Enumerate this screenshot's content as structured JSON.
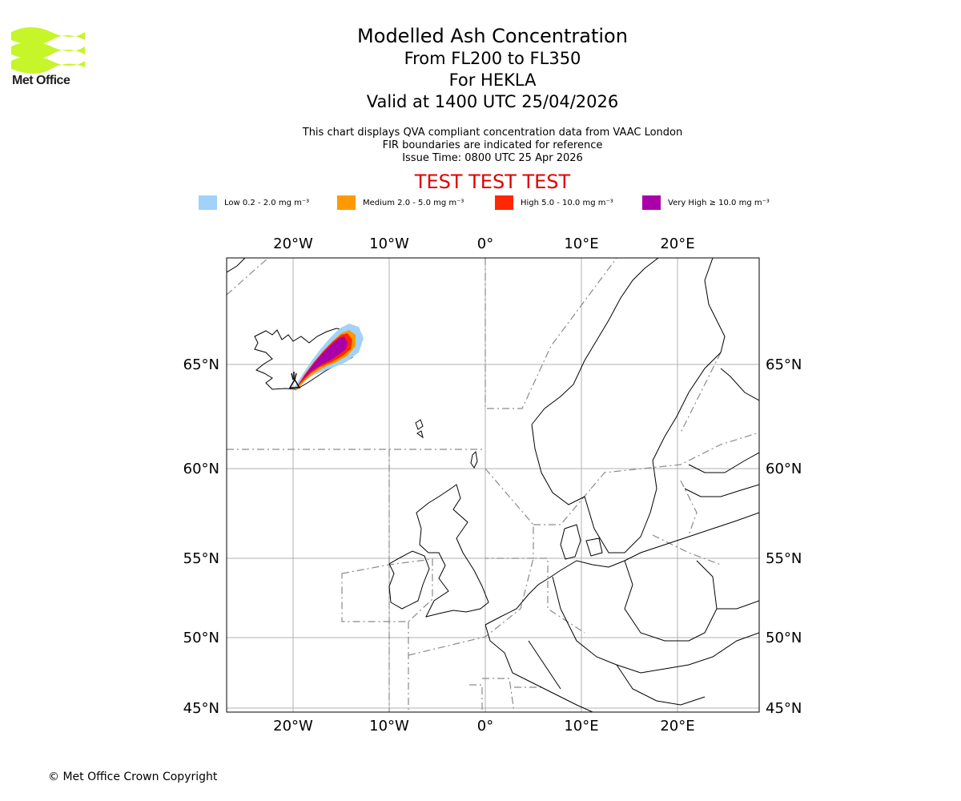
{
  "logo": {
    "text": "Met Office",
    "color": "#c6f52a"
  },
  "title": {
    "line1": "Modelled Ash Concentration",
    "line2": "From FL200 to FL350",
    "line3": "For HEKLA",
    "line4": "Valid at 1400 UTC 25/04/2026"
  },
  "notes": {
    "line1": "This chart displays QVA compliant concentration data from VAAC London",
    "line2": "FIR boundaries are indicated for reference",
    "line3": "Issue Time: 0800 UTC 25 Apr 2026"
  },
  "test_banner": "TEST TEST TEST",
  "legend": [
    {
      "label": "Low 0.2 - 2.0 mg m⁻³",
      "color": "#a0d2fa"
    },
    {
      "label": "Medium 2.0 - 5.0 mg m⁻³",
      "color": "#ff9900"
    },
    {
      "label": "High 5.0 - 10.0 mg m⁻³",
      "color": "#ff2800"
    },
    {
      "label": "Very High  ≥  10.0 mg m⁻³",
      "color": "#aa00aa"
    }
  ],
  "map": {
    "lon_ticks": [
      "20°W",
      "10°W",
      "0°",
      "10°E",
      "20°E"
    ],
    "lat_ticks": [
      "65°N",
      "60°N",
      "55°N",
      "50°N",
      "45°N"
    ],
    "volcano": "HEKLA"
  },
  "copyright": "© Met Office Crown Copyright"
}
